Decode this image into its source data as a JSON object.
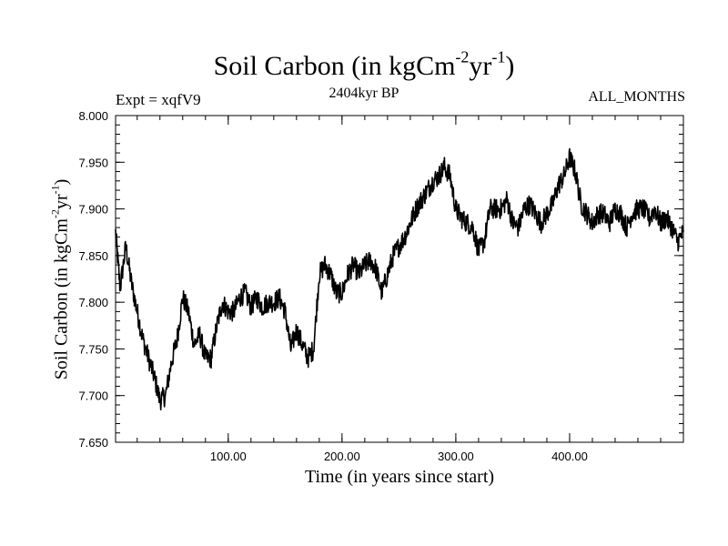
{
  "chart_data": {
    "type": "line",
    "title": "Soil Carbon (in kgCm",
    "title_sup1": "-2",
    "title_mid": "yr",
    "title_sup2": "-1",
    "title_end": ")",
    "subtitle": "2404kyr BP",
    "experiment": "Expt = xqfV9",
    "months": "ALL_MONTHS",
    "xlabel": "Time (in years since start)",
    "ylabel": "Soil Carbon (in kgCm",
    "ylabel_sup1": "-2",
    "ylabel_mid": "yr",
    "ylabel_sup2": "-1",
    "ylabel_end": ")",
    "xlim": [
      1,
      500
    ],
    "ylim": [
      7.65,
      8.0
    ],
    "xticks": [
      {
        "value": 100,
        "label": "100.00"
      },
      {
        "value": 200,
        "label": "200.00"
      },
      {
        "value": 300,
        "label": "300.00"
      },
      {
        "value": 400,
        "label": "400.00"
      }
    ],
    "yticks": [
      {
        "value": 7.65,
        "label": "7.650"
      },
      {
        "value": 7.7,
        "label": "7.700"
      },
      {
        "value": 7.75,
        "label": "7.750"
      },
      {
        "value": 7.8,
        "label": "7.800"
      },
      {
        "value": 7.85,
        "label": "7.850"
      },
      {
        "value": 7.9,
        "label": "7.900"
      },
      {
        "value": 7.95,
        "label": "7.950"
      },
      {
        "value": 8.0,
        "label": "8.000"
      }
    ],
    "series": [
      {
        "name": "Soil Carbon",
        "color": "#000000",
        "x": [
          1,
          5,
          10,
          15,
          20,
          25,
          30,
          35,
          40,
          45,
          50,
          55,
          60,
          65,
          70,
          75,
          80,
          85,
          90,
          95,
          100,
          105,
          110,
          115,
          120,
          125,
          130,
          135,
          140,
          145,
          150,
          155,
          160,
          165,
          170,
          175,
          180,
          185,
          190,
          195,
          200,
          205,
          210,
          215,
          220,
          225,
          230,
          235,
          240,
          245,
          250,
          255,
          260,
          265,
          270,
          275,
          280,
          285,
          290,
          295,
          300,
          305,
          310,
          315,
          320,
          325,
          330,
          335,
          340,
          345,
          350,
          355,
          360,
          365,
          370,
          375,
          380,
          385,
          390,
          395,
          400,
          405,
          410,
          415,
          420,
          425,
          430,
          435,
          440,
          445,
          450,
          455,
          460,
          465,
          470,
          475,
          480,
          485,
          490,
          495,
          500
        ],
        "y": [
          7.875,
          7.815,
          7.86,
          7.82,
          7.79,
          7.76,
          7.74,
          7.72,
          7.695,
          7.7,
          7.735,
          7.76,
          7.805,
          7.79,
          7.755,
          7.765,
          7.74,
          7.74,
          7.775,
          7.8,
          7.79,
          7.79,
          7.805,
          7.81,
          7.795,
          7.805,
          7.795,
          7.8,
          7.8,
          7.805,
          7.79,
          7.75,
          7.77,
          7.755,
          7.74,
          7.75,
          7.83,
          7.84,
          7.83,
          7.81,
          7.81,
          7.83,
          7.84,
          7.83,
          7.84,
          7.845,
          7.835,
          7.81,
          7.83,
          7.85,
          7.86,
          7.87,
          7.885,
          7.9,
          7.91,
          7.92,
          7.93,
          7.935,
          7.945,
          7.935,
          7.9,
          7.89,
          7.885,
          7.88,
          7.855,
          7.865,
          7.9,
          7.9,
          7.9,
          7.91,
          7.885,
          7.88,
          7.9,
          7.905,
          7.895,
          7.885,
          7.895,
          7.905,
          7.925,
          7.935,
          7.955,
          7.94,
          7.905,
          7.895,
          7.885,
          7.895,
          7.895,
          7.885,
          7.9,
          7.895,
          7.88,
          7.895,
          7.9,
          7.9,
          7.89,
          7.9,
          7.885,
          7.89,
          7.88,
          7.865,
          7.875
        ]
      }
    ]
  }
}
